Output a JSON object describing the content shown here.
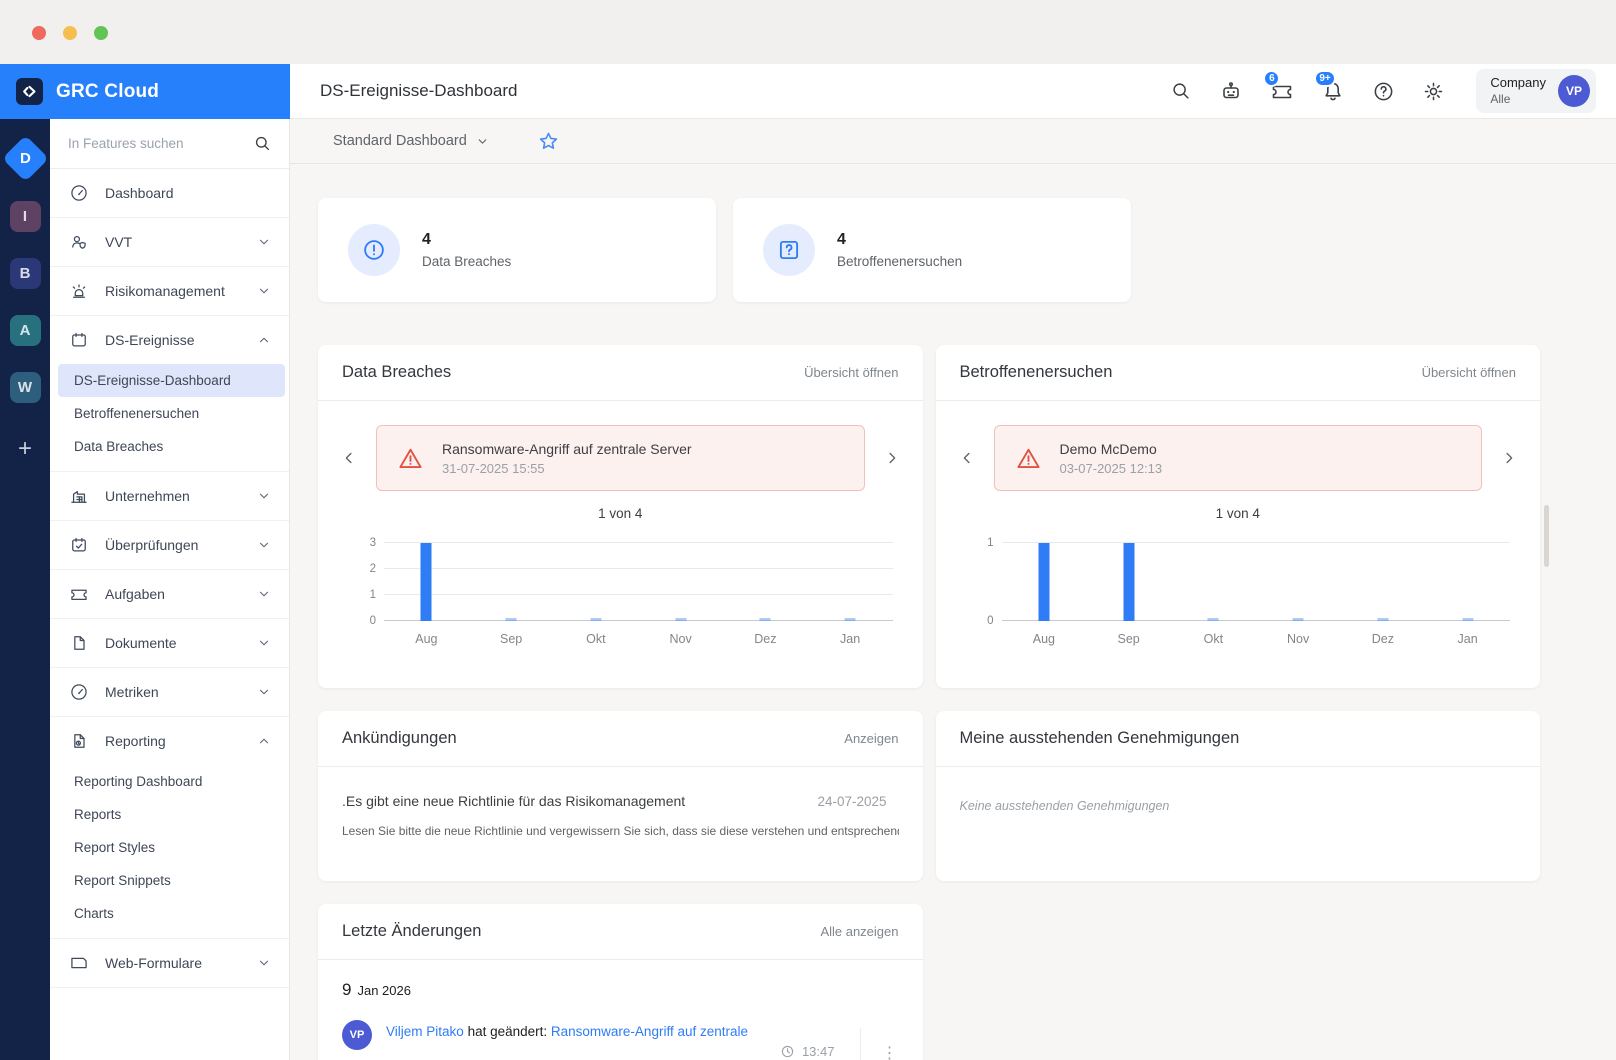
{
  "brand": {
    "name": "GRC Cloud",
    "accent": "#2680fb"
  },
  "rail": {
    "items": [
      {
        "label": "D",
        "color": "#2680fb",
        "shape": "diamond"
      },
      {
        "label": "I",
        "color": "#5e4263",
        "shape": "square"
      },
      {
        "label": "B",
        "color": "#2a3878",
        "shape": "square"
      },
      {
        "label": "A",
        "color": "#27707e",
        "shape": "square"
      },
      {
        "label": "W",
        "color": "#2e5e7d",
        "shape": "square"
      }
    ],
    "add_label": "+"
  },
  "sidebar": {
    "search_placeholder": "In Features suchen",
    "items": [
      {
        "label": "Dashboard",
        "icon": "gauge-icon"
      },
      {
        "label": "VVT",
        "icon": "people-icon",
        "chevron": "down"
      },
      {
        "label": "Risikomanagement",
        "icon": "alarm-icon",
        "chevron": "down"
      },
      {
        "label": "DS-Ereignisse",
        "icon": "calendar-icon",
        "chevron": "up",
        "children": [
          "DS-Ereignisse-Dashboard",
          "Betroffenenersuchen",
          "Data Breaches"
        ],
        "active_child": "DS-Ereignisse-Dashboard"
      },
      {
        "label": "Unternehmen",
        "icon": "building-icon",
        "chevron": "down"
      },
      {
        "label": "Überprüfungen",
        "icon": "calendar-check-icon",
        "chevron": "down"
      },
      {
        "label": "Aufgaben",
        "icon": "ticket-icon",
        "chevron": "down"
      },
      {
        "label": "Dokumente",
        "icon": "document-icon",
        "chevron": "down"
      },
      {
        "label": "Metriken",
        "icon": "gauge-icon",
        "chevron": "down"
      },
      {
        "label": "Reporting",
        "icon": "report-icon",
        "chevron": "up",
        "children": [
          "Reporting Dashboard",
          "Reports",
          "Report Styles",
          "Report Snippets",
          "Charts"
        ]
      },
      {
        "label": "Web-Formulare",
        "icon": "browser-icon",
        "chevron": "down"
      }
    ]
  },
  "header": {
    "title": "DS-Ereignisse-Dashboard",
    "badges": {
      "tickets": "6",
      "notifications": "9+"
    },
    "company": {
      "name": "Company",
      "scope": "Alle",
      "initials": "VP",
      "avatar_color": "#4c5bd4"
    }
  },
  "toolbar": {
    "dashboard_selector": "Standard Dashboard"
  },
  "stats": [
    {
      "value": "4",
      "label": "Data Breaches",
      "icon": "alert-circle-icon"
    },
    {
      "value": "4",
      "label": "Betroffenenersuchen",
      "icon": "question-square-icon"
    }
  ],
  "panels": {
    "data_breaches": {
      "title": "Data Breaches",
      "action": "Übersicht öffnen",
      "alert": {
        "title": "Ransomware-Angriff auf zentrale Server",
        "time": "31-07-2025 15:55"
      },
      "pager": "1 von 4"
    },
    "dsar": {
      "title": "Betroffenenersuchen",
      "action": "Übersicht öffnen",
      "alert": {
        "title": "Demo McDemo",
        "time": "03-07-2025 12:13"
      },
      "pager": "1 von 4"
    },
    "announcements": {
      "title": "Ankündigungen",
      "action": "Anzeigen",
      "item": {
        "title": ".Es gibt eine neue Richtlinie für das Risikomanagement",
        "date": "24-07-2025",
        "text": "Lesen Sie bitte die neue Richtlinie und vergewissern Sie sich, dass sie diese verstehen und entsprechend u…"
      }
    },
    "approvals": {
      "title": "Meine ausstehenden Genehmigungen",
      "empty": "Keine ausstehenden Genehmigungen"
    },
    "changes": {
      "title": "Letzte Änderungen",
      "action": "Alle anzeigen",
      "group_date_day": "9",
      "group_date": "Jan 2026",
      "entry": {
        "initials": "VP",
        "user": "Viljem Pitako",
        "action": "hat geändert:",
        "target": "Ransomware-Angriff auf zentrale",
        "time": "13:47"
      }
    }
  },
  "chart_data": [
    {
      "type": "bar",
      "title": "Data Breaches",
      "categories": [
        "Aug",
        "Sep",
        "Okt",
        "Nov",
        "Dez",
        "Jan"
      ],
      "values": [
        3,
        0,
        0,
        0,
        0,
        0
      ],
      "ylim": [
        0,
        3
      ],
      "yticks": [
        0,
        1,
        2,
        3
      ],
      "bar_color": "#2e7cf6",
      "grid": true,
      "xlabel": "",
      "ylabel": ""
    },
    {
      "type": "bar",
      "title": "Betroffenenersuchen",
      "categories": [
        "Aug",
        "Sep",
        "Okt",
        "Nov",
        "Dez",
        "Jan"
      ],
      "values": [
        1,
        1,
        0,
        0,
        0,
        0
      ],
      "ylim": [
        0,
        1
      ],
      "yticks": [
        0,
        1
      ],
      "bar_color": "#2e7cf6",
      "grid": true,
      "xlabel": "",
      "ylabel": ""
    }
  ]
}
